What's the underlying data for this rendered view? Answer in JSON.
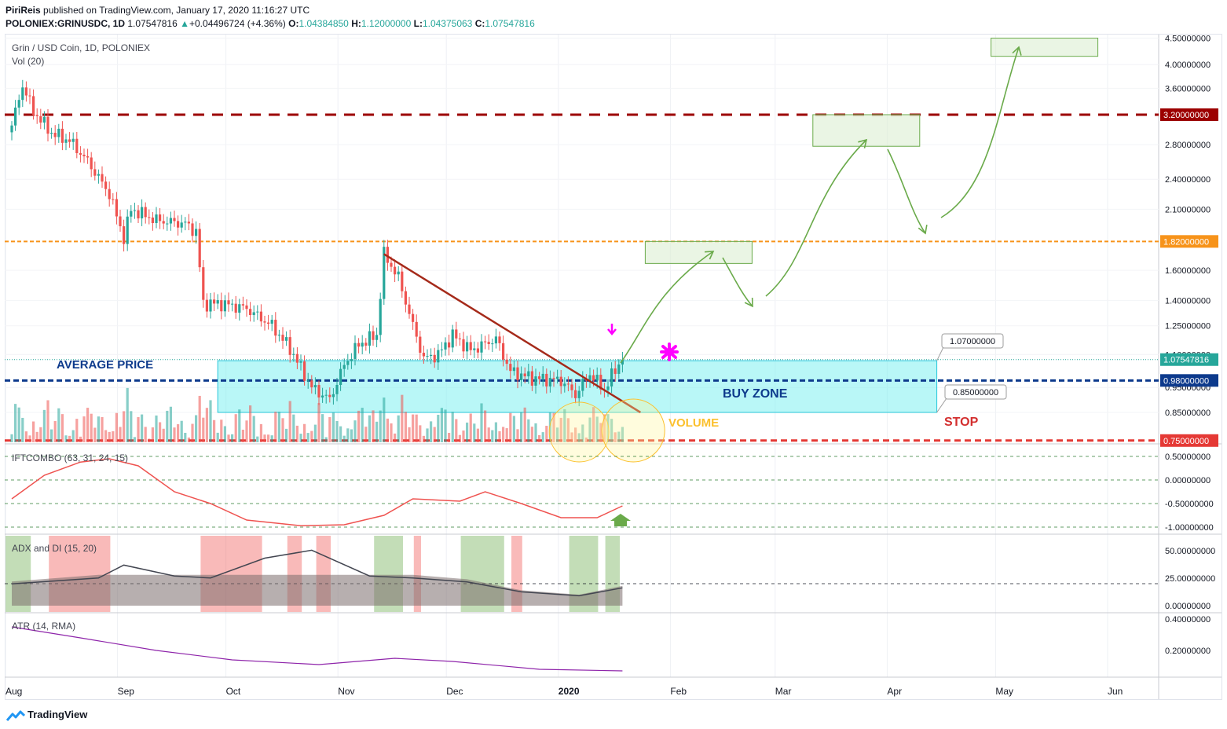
{
  "header": {
    "author": "PiriReis",
    "published": "published on TradingView.com, January 17, 2020 11:16:27 UTC",
    "symbol": "POLONIEX:GRINUSDC, 1D",
    "last": "1.07547816",
    "change": "+0.04496724 (+4.36%)",
    "o_label": "O:",
    "o": "1.04384850",
    "h_label": "H:",
    "h": "1.12000000",
    "l_label": "L:",
    "l": "1.04375063",
    "c_label": "C:",
    "c": "1.07547816"
  },
  "footer": {
    "brand": "TradingView"
  },
  "colors": {
    "up": "#26a69a",
    "down": "#ef5350",
    "resistance": "#9c0000",
    "orange": "#f7931a",
    "navy": "#0d3a8c",
    "stop": "#e53935",
    "arrow": "#6aaa4a",
    "magenta": "#ff00ff",
    "atr": "#8e24aa"
  },
  "chart_data": [
    {
      "type": "candlestick",
      "title": "Grin / USD Coin, 1D, POLONIEX",
      "volume_label": "Vol (20)",
      "x_ticks": [
        "Aug",
        "Sep",
        "Oct",
        "Nov",
        "Dec",
        "2020",
        "Feb",
        "Mar",
        "Apr",
        "May",
        "Jun"
      ],
      "y_ticks": [
        "4.50000000",
        "4.00000000",
        "3.60000000",
        "3.20000000",
        "2.80000000",
        "2.40000000",
        "2.10000000",
        "1.82000000",
        "1.60000000",
        "1.40000000",
        "1.25000000",
        "1.10000000",
        "1.07547816",
        "0.98000000",
        "0.95000000",
        "0.85000000",
        "0.75000000"
      ],
      "highlighted_levels": [
        {
          "value": 3.2,
          "label": "3.20000000",
          "color": "#9c0000",
          "style": "dashed"
        },
        {
          "value": 1.82,
          "label": "1.82000000",
          "color": "#f7931a",
          "style": "dashed"
        },
        {
          "value": 1.07547816,
          "label": "1.07547816",
          "color": "#26a69a",
          "style": "dotted"
        },
        {
          "value": 0.98,
          "label": "0.98000000",
          "color": "#0d3a8c",
          "style": "dashed"
        },
        {
          "value": 0.75,
          "label": "0.75000000",
          "color": "#e53935",
          "style": "dashed"
        }
      ],
      "close_series": [
        {
          "x": "2019-08-01",
          "y": 3.05
        },
        {
          "x": "2019-08-04",
          "y": 3.65
        },
        {
          "x": "2019-08-07",
          "y": 3.25
        },
        {
          "x": "2019-08-12",
          "y": 2.95
        },
        {
          "x": "2019-08-17",
          "y": 2.85
        },
        {
          "x": "2019-08-22",
          "y": 2.6
        },
        {
          "x": "2019-08-28",
          "y": 2.25
        },
        {
          "x": "2019-09-01",
          "y": 1.85
        },
        {
          "x": "2019-09-03",
          "y": 2.1
        },
        {
          "x": "2019-09-10",
          "y": 2.0
        },
        {
          "x": "2019-09-18",
          "y": 1.97
        },
        {
          "x": "2019-09-21",
          "y": 1.9
        },
        {
          "x": "2019-09-23",
          "y": 1.38
        },
        {
          "x": "2019-09-28",
          "y": 1.38
        },
        {
          "x": "2019-10-05",
          "y": 1.35
        },
        {
          "x": "2019-10-12",
          "y": 1.25
        },
        {
          "x": "2019-10-17",
          "y": 1.13
        },
        {
          "x": "2019-10-23",
          "y": 0.95
        },
        {
          "x": "2019-10-28",
          "y": 0.9
        },
        {
          "x": "2019-11-01",
          "y": 1.05
        },
        {
          "x": "2019-11-05",
          "y": 1.15
        },
        {
          "x": "2019-11-10",
          "y": 1.2
        },
        {
          "x": "2019-11-12",
          "y": 1.72
        },
        {
          "x": "2019-11-16",
          "y": 1.55
        },
        {
          "x": "2019-11-20",
          "y": 1.25
        },
        {
          "x": "2019-11-23",
          "y": 1.08
        },
        {
          "x": "2019-11-27",
          "y": 1.1
        },
        {
          "x": "2019-12-01",
          "y": 1.2
        },
        {
          "x": "2019-12-06",
          "y": 1.12
        },
        {
          "x": "2019-12-13",
          "y": 1.18
        },
        {
          "x": "2019-12-17",
          "y": 1.02
        },
        {
          "x": "2019-12-23",
          "y": 0.99
        },
        {
          "x": "2019-12-31",
          "y": 0.98
        },
        {
          "x": "2020-01-04",
          "y": 0.92
        },
        {
          "x": "2020-01-08",
          "y": 1.01
        },
        {
          "x": "2020-01-12",
          "y": 0.94
        },
        {
          "x": "2020-01-15",
          "y": 1.03
        },
        {
          "x": "2020-01-17",
          "y": 1.075
        }
      ],
      "annotations": [
        "AVERAGE PRICE",
        "BUY ZONE",
        "VOLUME",
        "STOP",
        "1.07000000",
        "0.85000000"
      ]
    },
    {
      "type": "line",
      "title": "IFTCOMBO (63, 31, 24, 15)",
      "y_ticks": [
        "0.50000000",
        "0.00000000",
        "-0.50000000",
        "-1.00000000"
      ],
      "series": [
        {
          "color": "#ef5350",
          "points": [
            {
              "x": "2019-08-01",
              "y": -0.4
            },
            {
              "x": "2019-08-10",
              "y": 0.1
            },
            {
              "x": "2019-08-20",
              "y": 0.38
            },
            {
              "x": "2019-08-28",
              "y": 0.45
            },
            {
              "x": "2019-09-05",
              "y": 0.3
            },
            {
              "x": "2019-09-15",
              "y": -0.25
            },
            {
              "x": "2019-09-25",
              "y": -0.5
            },
            {
              "x": "2019-10-05",
              "y": -0.85
            },
            {
              "x": "2019-10-20",
              "y": -0.97
            },
            {
              "x": "2019-11-01",
              "y": -0.95
            },
            {
              "x": "2019-11-12",
              "y": -0.75
            },
            {
              "x": "2019-11-20",
              "y": -0.4
            },
            {
              "x": "2019-12-03",
              "y": -0.45
            },
            {
              "x": "2019-12-10",
              "y": -0.25
            },
            {
              "x": "2019-12-20",
              "y": -0.5
            },
            {
              "x": "2019-12-31",
              "y": -0.8
            },
            {
              "x": "2020-01-10",
              "y": -0.8
            },
            {
              "x": "2020-01-17",
              "y": -0.55
            }
          ]
        }
      ]
    },
    {
      "type": "area",
      "title": "ADX and DI (15, 20)",
      "y_ticks": [
        "50.00000000",
        "25.00000000",
        "0.00000000"
      ],
      "series": [
        {
          "name": "ADX",
          "color": "#434651",
          "points": [
            {
              "x": "2019-08-01",
              "y": 22
            },
            {
              "x": "2019-08-25",
              "y": 28
            },
            {
              "x": "2019-09-01",
              "y": 41
            },
            {
              "x": "2019-09-15",
              "y": 30
            },
            {
              "x": "2019-09-25",
              "y": 28
            },
            {
              "x": "2019-10-10",
              "y": 48
            },
            {
              "x": "2019-10-23",
              "y": 56
            },
            {
              "x": "2019-11-08",
              "y": 30
            },
            {
              "x": "2019-11-20",
              "y": 28
            },
            {
              "x": "2019-12-05",
              "y": 24
            },
            {
              "x": "2019-12-20",
              "y": 14
            },
            {
              "x": "2020-01-05",
              "y": 10
            },
            {
              "x": "2020-01-17",
              "y": 18
            }
          ]
        }
      ]
    },
    {
      "type": "line",
      "title": "ATR (14, RMA)",
      "y_ticks": [
        "0.40000000",
        "0.20000000"
      ],
      "series": [
        {
          "color": "#8e24aa",
          "points": [
            {
              "x": "2019-08-01",
              "y": 0.35
            },
            {
              "x": "2019-08-20",
              "y": 0.28
            },
            {
              "x": "2019-09-10",
              "y": 0.2
            },
            {
              "x": "2019-10-01",
              "y": 0.14
            },
            {
              "x": "2019-10-25",
              "y": 0.11
            },
            {
              "x": "2019-11-15",
              "y": 0.15
            },
            {
              "x": "2019-12-01",
              "y": 0.13
            },
            {
              "x": "2019-12-25",
              "y": 0.08
            },
            {
              "x": "2020-01-17",
              "y": 0.07
            }
          ]
        }
      ]
    }
  ]
}
